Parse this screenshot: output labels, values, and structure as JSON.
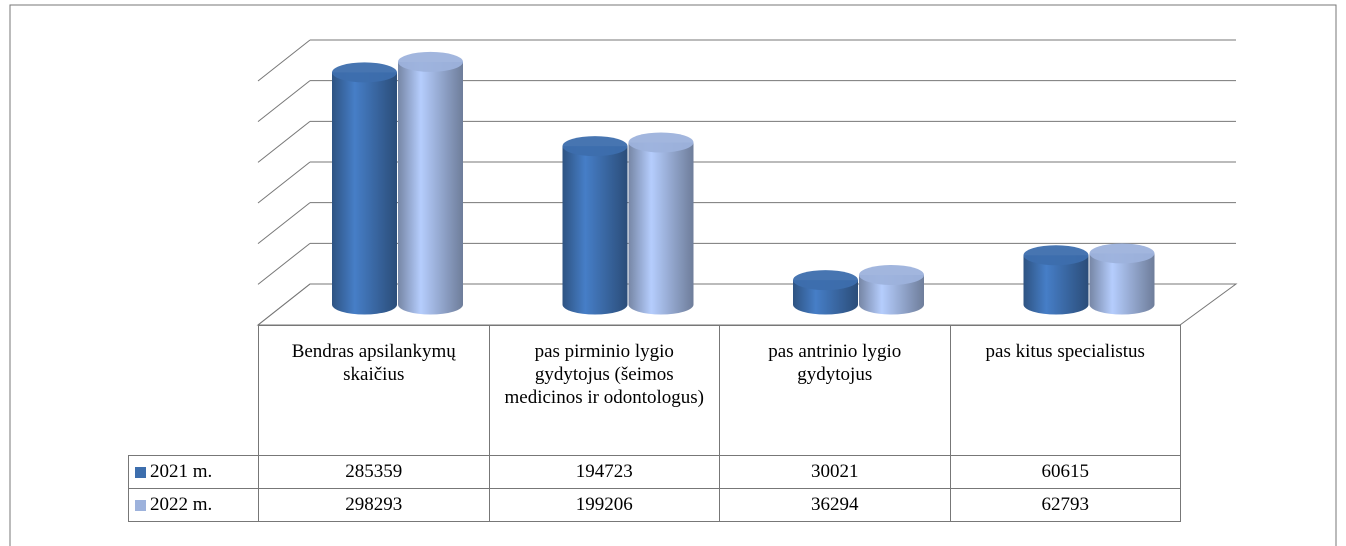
{
  "chart_data": {
    "type": "bar",
    "categories": [
      "Bendras apsilankymų skaičius",
      "pas pirminio lygio gydytojus (šeimos medicinos ir odontologus)",
      "pas antrinio lygio gydytojus",
      "pas kitus specialistus"
    ],
    "series": [
      {
        "name": "2021 m.",
        "color": "#3d6ead",
        "values": [
          285359,
          194723,
          30021,
          60615
        ]
      },
      {
        "name": "2022 m.",
        "color": "#9db2dc",
        "values": [
          298293,
          199206,
          36294,
          62793
        ]
      }
    ],
    "ylim": [
      0,
      300000
    ],
    "yticks": [
      0,
      50000,
      100000,
      150000,
      200000,
      250000,
      300000
    ],
    "grid": true
  }
}
